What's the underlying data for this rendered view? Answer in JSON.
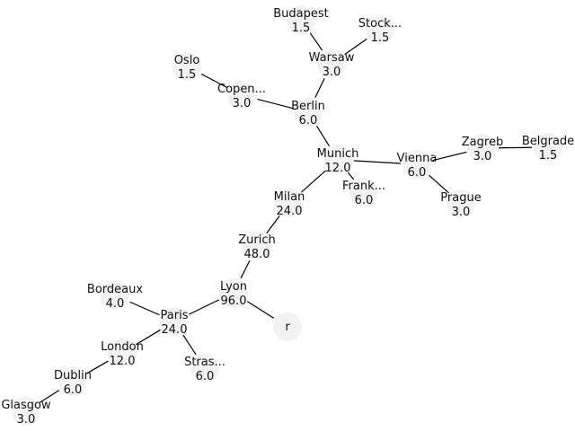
{
  "nodes": [
    {
      "id": "r",
      "name": "r",
      "value": ""
    },
    {
      "id": "lyon",
      "name": "Lyon",
      "value": "96.0"
    },
    {
      "id": "zurich",
      "name": "Zurich",
      "value": "48.0"
    },
    {
      "id": "milan",
      "name": "Milan",
      "value": "24.0"
    },
    {
      "id": "munich",
      "name": "Munich",
      "value": "12.0"
    },
    {
      "id": "berlin",
      "name": "Berlin",
      "value": "6.0"
    },
    {
      "id": "warsaw",
      "name": "Warsaw",
      "value": "3.0"
    },
    {
      "id": "budapest",
      "name": "Budapest",
      "value": "1.5"
    },
    {
      "id": "stock",
      "name": "Stock...",
      "value": "1.5"
    },
    {
      "id": "copen",
      "name": "Copen...",
      "value": "3.0"
    },
    {
      "id": "oslo",
      "name": "Oslo",
      "value": "1.5"
    },
    {
      "id": "frank",
      "name": "Frank...",
      "value": "6.0"
    },
    {
      "id": "vienna",
      "name": "Vienna",
      "value": "6.0"
    },
    {
      "id": "zagreb",
      "name": "Zagreb",
      "value": "3.0"
    },
    {
      "id": "belgrade",
      "name": "Belgrade",
      "value": "1.5"
    },
    {
      "id": "prague",
      "name": "Prague",
      "value": "3.0"
    },
    {
      "id": "paris",
      "name": "Paris",
      "value": "24.0"
    },
    {
      "id": "bordeaux",
      "name": "Bordeaux",
      "value": "4.0"
    },
    {
      "id": "london",
      "name": "London",
      "value": "12.0"
    },
    {
      "id": "dublin",
      "name": "Dublin",
      "value": "6.0"
    },
    {
      "id": "glasgow",
      "name": "Glasgow",
      "value": "3.0"
    },
    {
      "id": "stras",
      "name": "Stras...",
      "value": "6.0"
    }
  ],
  "edges": [
    [
      "r",
      "lyon"
    ],
    [
      "lyon",
      "zurich"
    ],
    [
      "zurich",
      "milan"
    ],
    [
      "milan",
      "munich"
    ],
    [
      "munich",
      "berlin"
    ],
    [
      "berlin",
      "warsaw"
    ],
    [
      "warsaw",
      "budapest"
    ],
    [
      "warsaw",
      "stock"
    ],
    [
      "berlin",
      "copen"
    ],
    [
      "copen",
      "oslo"
    ],
    [
      "munich",
      "frank"
    ],
    [
      "munich",
      "vienna"
    ],
    [
      "vienna",
      "zagreb"
    ],
    [
      "zagreb",
      "belgrade"
    ],
    [
      "vienna",
      "prague"
    ],
    [
      "lyon",
      "paris"
    ],
    [
      "paris",
      "bordeaux"
    ],
    [
      "paris",
      "london"
    ],
    [
      "london",
      "dublin"
    ],
    [
      "dublin",
      "glasgow"
    ],
    [
      "paris",
      "stras"
    ]
  ]
}
